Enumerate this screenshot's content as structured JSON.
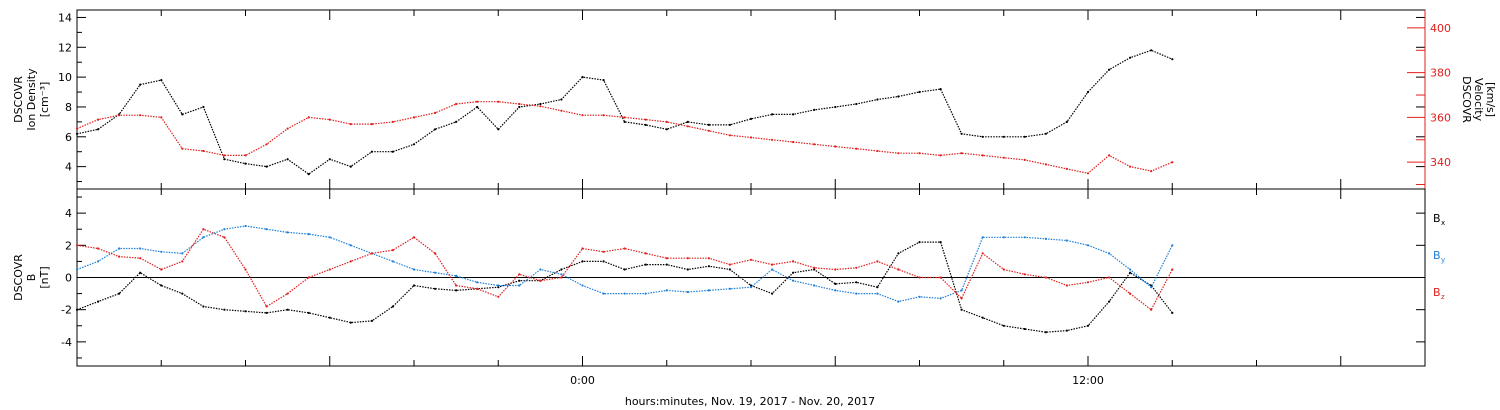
{
  "footer": {
    "xlabel": "hours:minutes, Nov. 19, 2017 - Nov. 20, 2017"
  },
  "colors": {
    "black": "#000000",
    "red": "#e0201e",
    "blue": "#1e7fd8"
  },
  "x_axis": {
    "range_hours": [
      -12,
      20
    ],
    "major_ticks": [
      {
        "hour": 0,
        "label": "0:00"
      },
      {
        "hour": 12,
        "label": "12:00"
      }
    ],
    "minor_step_hours": 2
  },
  "chart_data": [
    {
      "type": "line",
      "panel": "top",
      "left_axis": {
        "label_lines": [
          "DSCOVR",
          "Ion Density",
          "[cm⁻³]"
        ],
        "ylim": [
          2.5,
          14.5
        ],
        "ticks": [
          4,
          6,
          8,
          10,
          12,
          14
        ]
      },
      "right_axis": {
        "label_lines": [
          "DSCOVR",
          "Velocity",
          "[km/s]"
        ],
        "ylim": [
          328,
          408
        ],
        "ticks": [
          340,
          360,
          380,
          400
        ],
        "color": "#e0201e"
      },
      "x": [
        -12,
        -11.5,
        -11,
        -10.5,
        -10,
        -9.5,
        -9,
        -8.5,
        -8,
        -7.5,
        -7,
        -6.5,
        -6,
        -5.5,
        -5,
        -4.5,
        -4,
        -3.5,
        -3,
        -2.5,
        -2,
        -1.5,
        -1,
        -0.5,
        0,
        0.5,
        1,
        1.5,
        2,
        2.5,
        3,
        3.5,
        4,
        4.5,
        5,
        5.5,
        6,
        6.5,
        7,
        7.5,
        8,
        8.5,
        9,
        9.5,
        10,
        10.5,
        11,
        11.5,
        12,
        12.5,
        13,
        13.5,
        14
      ],
      "series": [
        {
          "axis": "left",
          "color": "#000000",
          "values": [
            6.2,
            6.5,
            7.5,
            9.5,
            9.8,
            7.5,
            8.0,
            4.5,
            4.2,
            4.0,
            4.5,
            3.5,
            4.5,
            4.0,
            5.0,
            5.0,
            5.5,
            6.5,
            7.0,
            8.0,
            6.5,
            8.0,
            8.2,
            8.5,
            10.0,
            9.8,
            7.0,
            6.8,
            6.5,
            7.0,
            6.8,
            6.8,
            7.2,
            7.5,
            7.5,
            7.8,
            8.0,
            8.2,
            8.5,
            8.7,
            9.0,
            9.2,
            6.2,
            6.0,
            6.0,
            6.0,
            6.2,
            7.0,
            9.0,
            10.5,
            11.3,
            11.8,
            11.2
          ]
        },
        {
          "axis": "right",
          "color": "#e0201e",
          "values": [
            355,
            359,
            361,
            361,
            360,
            346,
            345,
            343,
            343,
            348,
            355,
            360,
            359,
            357,
            357,
            358,
            360,
            362,
            366,
            367,
            367,
            366,
            365,
            363,
            361,
            361,
            360,
            359,
            358,
            356,
            354,
            352,
            351,
            350,
            349,
            348,
            347,
            346,
            345,
            344,
            344,
            343,
            344,
            343,
            342,
            341,
            339,
            337,
            335,
            343,
            338,
            336,
            340
          ]
        }
      ]
    },
    {
      "type": "line",
      "panel": "bottom",
      "left_axis": {
        "label_lines": [
          "DSCOVR",
          "B",
          "[nT]"
        ],
        "ylim": [
          -5.5,
          5.5
        ],
        "ticks": [
          -4,
          -2,
          0,
          2,
          4
        ]
      },
      "zero_line": true,
      "legend_position": "right",
      "x": [
        -12,
        -11.5,
        -11,
        -10.5,
        -10,
        -9.5,
        -9,
        -8.5,
        -8,
        -7.5,
        -7,
        -6.5,
        -6,
        -5.5,
        -5,
        -4.5,
        -4,
        -3.5,
        -3,
        -2.5,
        -2,
        -1.5,
        -1,
        -0.5,
        0,
        0.5,
        1,
        1.5,
        2,
        2.5,
        3,
        3.5,
        4,
        4.5,
        5,
        5.5,
        6,
        6.5,
        7,
        7.5,
        8,
        8.5,
        9,
        9.5,
        10,
        10.5,
        11,
        11.5,
        12,
        12.5,
        13,
        13.5,
        14
      ],
      "series": [
        {
          "name": "B",
          "subscript": "x",
          "color": "#000000",
          "values": [
            -2.0,
            -1.5,
            -1.0,
            0.3,
            -0.5,
            -1.0,
            -1.8,
            -2.0,
            -2.1,
            -2.2,
            -2.0,
            -2.2,
            -2.5,
            -2.8,
            -2.7,
            -1.8,
            -0.5,
            -0.7,
            -0.8,
            -0.7,
            -0.6,
            -0.2,
            -0.2,
            0.5,
            1.0,
            1.0,
            0.5,
            0.8,
            0.8,
            0.5,
            0.7,
            0.5,
            -0.5,
            -1.0,
            0.3,
            0.5,
            -0.4,
            -0.3,
            -0.6,
            1.5,
            2.2,
            2.2,
            -2.0,
            -2.5,
            -3.0,
            -3.2,
            -3.4,
            -3.3,
            -3.0,
            -1.5,
            0.3,
            -0.5,
            -2.2
          ]
        },
        {
          "name": "B",
          "subscript": "y",
          "color": "#1e7fd8",
          "values": [
            0.5,
            1.0,
            1.8,
            1.8,
            1.6,
            1.5,
            2.5,
            3.0,
            3.2,
            3.0,
            2.8,
            2.7,
            2.5,
            2.0,
            1.5,
            1.0,
            0.5,
            0.3,
            0.1,
            -0.3,
            -0.5,
            -0.5,
            0.5,
            0.2,
            -0.5,
            -1.0,
            -1.0,
            -1.0,
            -0.8,
            -0.9,
            -0.8,
            -0.7,
            -0.6,
            0.5,
            -0.2,
            -0.5,
            -0.8,
            -1.0,
            -1.0,
            -1.5,
            -1.2,
            -1.3,
            -0.8,
            2.5,
            2.5,
            2.5,
            2.4,
            2.3,
            2.0,
            1.5,
            0.5,
            -0.6,
            2.0
          ]
        },
        {
          "name": "B",
          "subscript": "z",
          "color": "#e0201e",
          "values": [
            2.0,
            1.8,
            1.3,
            1.2,
            0.5,
            1.0,
            3.0,
            2.5,
            0.5,
            -1.8,
            -1.0,
            0.0,
            0.5,
            1.0,
            1.5,
            1.7,
            2.5,
            1.5,
            -0.5,
            -0.7,
            -1.2,
            0.2,
            -0.2,
            0.0,
            1.8,
            1.6,
            1.8,
            1.5,
            1.2,
            1.2,
            1.2,
            0.8,
            1.1,
            0.8,
            1.0,
            0.6,
            0.5,
            0.6,
            1.0,
            0.5,
            0.0,
            0.0,
            -1.3,
            1.5,
            0.5,
            0.2,
            0.0,
            -0.5,
            -0.3,
            0.0,
            -1.0,
            -2.0,
            0.5
          ]
        }
      ]
    }
  ]
}
